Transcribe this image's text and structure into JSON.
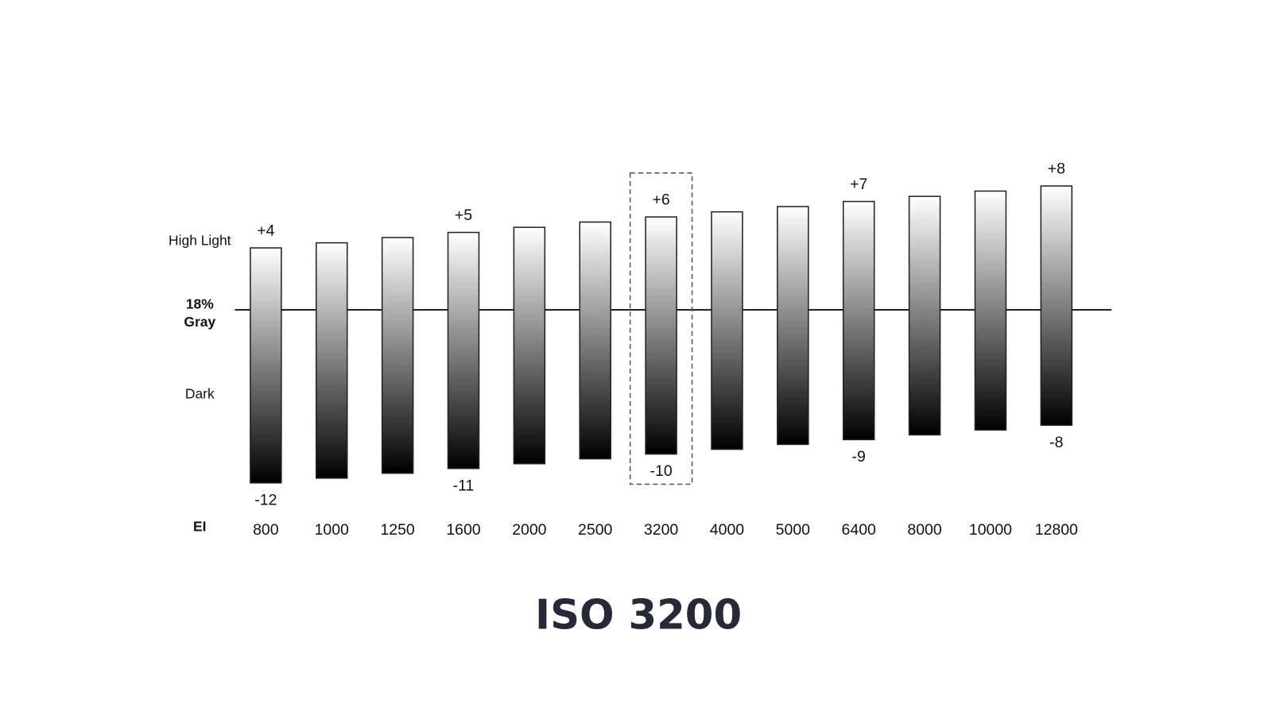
{
  "chart_data": {
    "type": "range-bar",
    "title": "ISO 3200",
    "x_label": "EI",
    "high_label": "High Light",
    "mid_label": [
      "18%",
      "Gray"
    ],
    "low_label": "Dark",
    "categories": [
      "800",
      "1000",
      "1250",
      "1600",
      "2000",
      "2500",
      "3200",
      "4000",
      "5000",
      "6400",
      "8000",
      "10000",
      "12800"
    ],
    "highlight": "3200",
    "colors": [
      "#ffffff",
      "#000000"
    ],
    "high_stops": {
      "values": [
        4,
        4.33,
        4.67,
        5,
        5.33,
        5.67,
        6,
        6.33,
        6.67,
        7,
        7.33,
        7.67,
        8
      ],
      "value_labels": [
        "+4",
        null,
        null,
        "+5",
        null,
        null,
        "+6",
        null,
        null,
        "+7",
        null,
        null,
        "+8"
      ]
    },
    "dark_stops": {
      "values": [
        -12,
        -11.67,
        -11.33,
        -11,
        -10.67,
        -10.33,
        -10,
        -9.67,
        -9.33,
        -9,
        -8.67,
        -8.33,
        -8
      ],
      "value_labels": [
        "-12",
        null,
        null,
        "-11",
        null,
        null,
        "-10",
        null,
        null,
        "-9",
        null,
        null,
        "-8"
      ]
    }
  }
}
